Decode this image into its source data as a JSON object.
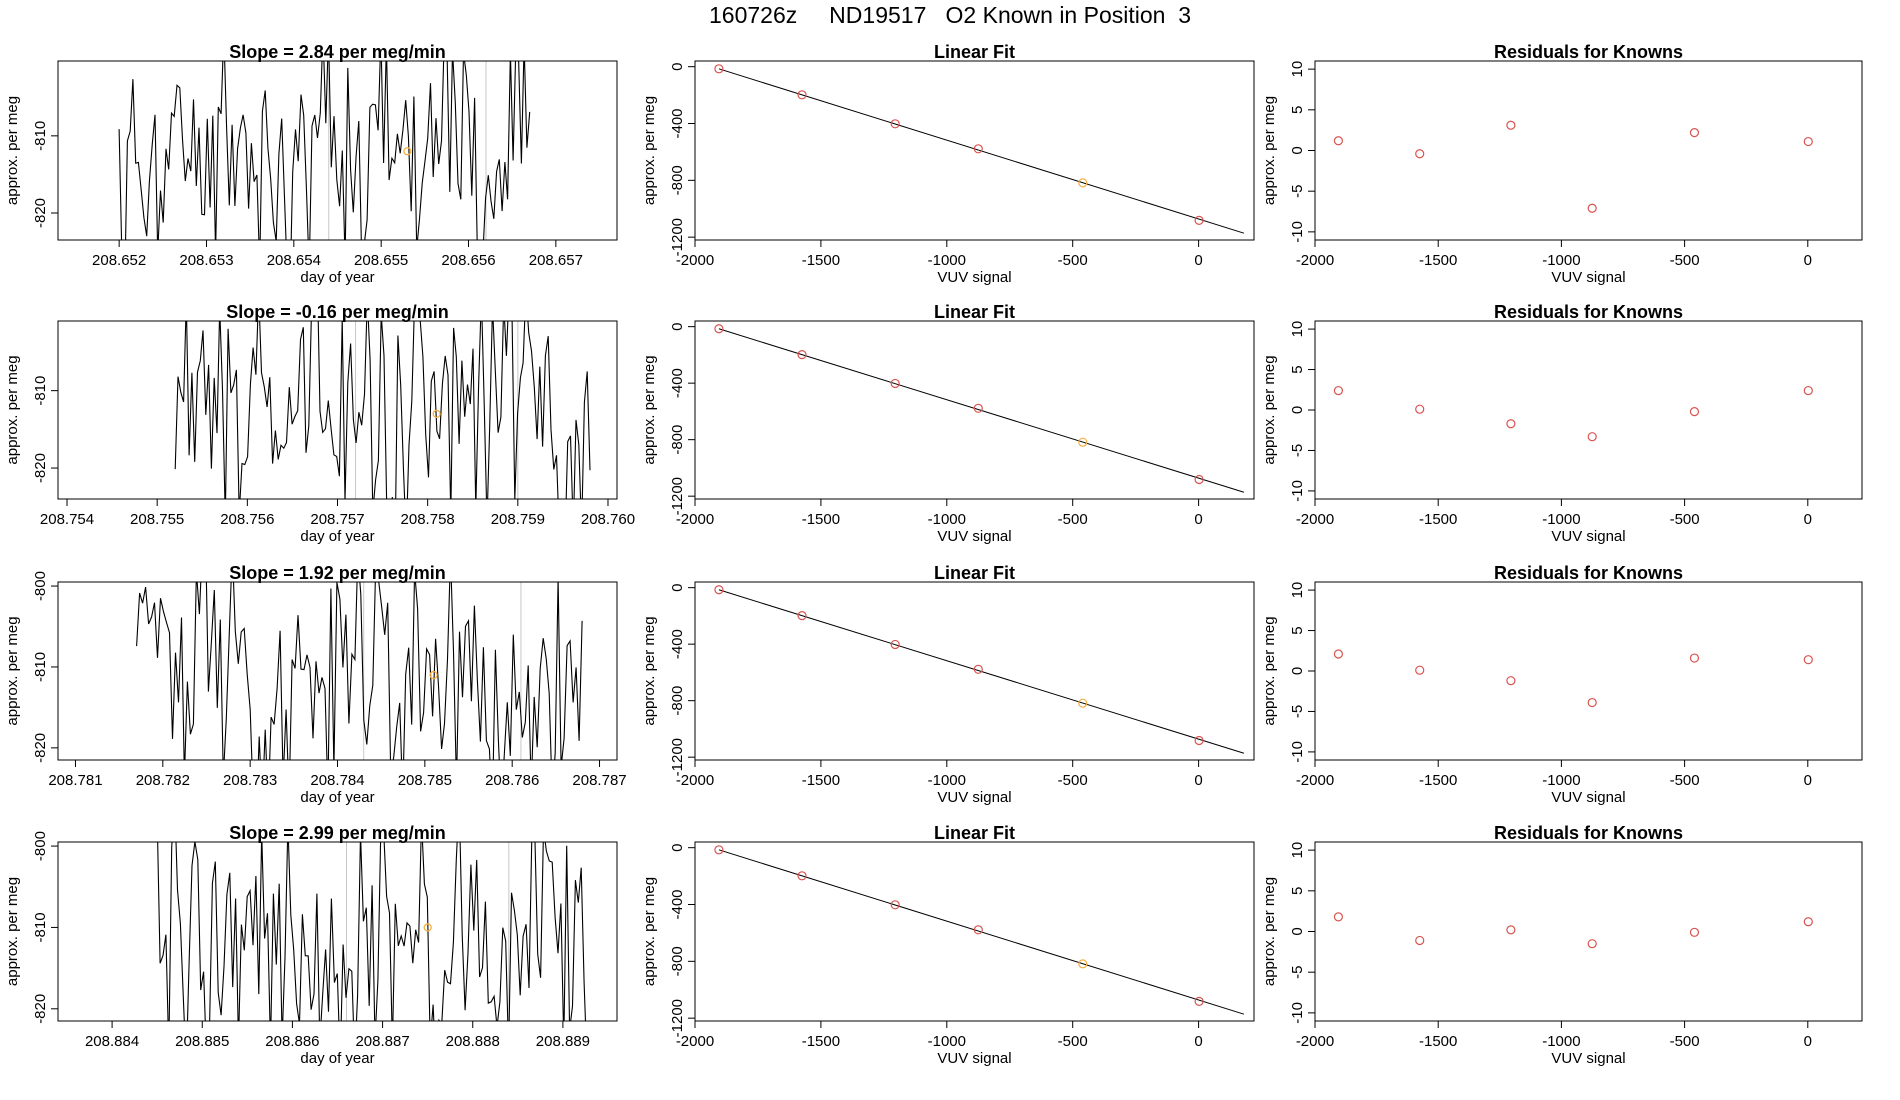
{
  "figure_title": "160726z     ND19517   O2 Known in Position  3",
  "colors": {
    "line": "#000000",
    "known_point": "#f4b041",
    "resid_point": "#d9534f",
    "fit_point_marker": "#d9534f",
    "vline": "#c8c8c8"
  },
  "chart_data": [
    {
      "type": "line",
      "title": "Slope =  2.84  per meg/min",
      "xlabel": "day of year",
      "ylabel": "approx. per meg",
      "xlim": [
        208.6513,
        208.6577
      ],
      "ylim": [
        -823.5,
        -800.3
      ],
      "xticks": [
        208.652,
        208.653,
        208.654,
        208.655,
        208.656,
        208.657
      ],
      "xtick_labels": [
        "208.652",
        "208.653",
        "208.654",
        "208.655",
        "208.656",
        "208.657"
      ],
      "yticks": [
        -810,
        -820
      ],
      "ytick_labels": [
        "-810",
        "-820"
      ],
      "x_start": 208.652,
      "x_end": 208.6567,
      "vlines": [
        208.6544,
        208.6562
      ],
      "marker": {
        "x": 208.6553,
        "y": -812
      },
      "seed": 11,
      "series_mean": -812,
      "series_spread": 8
    },
    {
      "type": "scatter",
      "title": "Linear Fit",
      "xlabel": "VUV signal",
      "ylabel": "approx. per meg",
      "xlim": [
        -2000,
        220
      ],
      "ylim": [
        -1220,
        40
      ],
      "xticks": [
        -2000,
        -1500,
        -1000,
        -500,
        0
      ],
      "xtick_labels": [
        "-2000",
        "-1500",
        "-1000",
        "-500",
        "0"
      ],
      "yticks": [
        0,
        -400,
        -800,
        -1200
      ],
      "ytick_labels": [
        "0",
        "-400",
        "-800",
        "-1200"
      ],
      "x": [
        -1905,
        -1575,
        -1205,
        -875,
        -460,
        2
      ],
      "y": [
        -15,
        -198,
        -402,
        -578,
        -818,
        -1082
      ],
      "highlight_index": 4,
      "fit_line": {
        "x": [
          -1905,
          180
        ],
        "y": [
          -15,
          -1172
        ]
      }
    },
    {
      "type": "scatter",
      "title": "Residuals for Knowns",
      "xlabel": "VUV signal",
      "ylabel": "approx. per meg",
      "xlim": [
        -2000,
        220
      ],
      "ylim": [
        -11,
        11
      ],
      "xticks": [
        -2000,
        -1500,
        -1000,
        -500,
        0
      ],
      "xtick_labels": [
        "-2000",
        "-1500",
        "-1000",
        "-500",
        "0"
      ],
      "yticks": [
        10,
        5,
        0,
        -5,
        -10
      ],
      "ytick_labels": [
        "10",
        "5",
        "0",
        "-5",
        "-10"
      ],
      "x": [
        -1905,
        -1575,
        -1205,
        -875,
        -460,
        2
      ],
      "y": [
        1.2,
        -0.4,
        3.1,
        -7.1,
        2.2,
        1.1
      ]
    },
    {
      "type": "line",
      "title": "Slope =  -0.16  per meg/min",
      "xlabel": "day of year",
      "ylabel": "approx. per meg",
      "xlim": [
        208.7539,
        208.7601
      ],
      "ylim": [
        -824,
        -801
      ],
      "xticks": [
        208.754,
        208.755,
        208.756,
        208.757,
        208.758,
        208.759,
        208.76
      ],
      "xtick_labels": [
        "208.754",
        "208.755",
        "208.756",
        "208.757",
        "208.758",
        "208.759",
        "208.760"
      ],
      "yticks": [
        -810,
        -820
      ],
      "ytick_labels": [
        "-810",
        "-820"
      ],
      "x_start": 208.7552,
      "x_end": 208.7598,
      "vlines": [
        208.7572,
        208.759
      ],
      "marker": {
        "x": 208.7581,
        "y": -813
      },
      "seed": 23,
      "series_mean": -813,
      "series_spread": 8
    },
    {
      "type": "scatter",
      "title": "Linear Fit",
      "xlabel": "VUV signal",
      "ylabel": "approx. per meg",
      "xlim": [
        -2000,
        220
      ],
      "ylim": [
        -1220,
        40
      ],
      "xticks": [
        -2000,
        -1500,
        -1000,
        -500,
        0
      ],
      "xtick_labels": [
        "-2000",
        "-1500",
        "-1000",
        "-500",
        "0"
      ],
      "yticks": [
        0,
        -400,
        -800,
        -1200
      ],
      "ytick_labels": [
        "0",
        "-400",
        "-800",
        "-1200"
      ],
      "x": [
        -1905,
        -1575,
        -1205,
        -875,
        -460,
        2
      ],
      "y": [
        -15,
        -198,
        -402,
        -578,
        -818,
        -1082
      ],
      "highlight_index": 4,
      "fit_line": {
        "x": [
          -1905,
          180
        ],
        "y": [
          -15,
          -1172
        ]
      }
    },
    {
      "type": "scatter",
      "title": "Residuals for Knowns",
      "xlabel": "VUV signal",
      "ylabel": "approx. per meg",
      "xlim": [
        -2000,
        220
      ],
      "ylim": [
        -11,
        11
      ],
      "xticks": [
        -2000,
        -1500,
        -1000,
        -500,
        0
      ],
      "xtick_labels": [
        "-2000",
        "-1500",
        "-1000",
        "-500",
        "0"
      ],
      "yticks": [
        10,
        5,
        0,
        -5,
        -10
      ],
      "ytick_labels": [
        "10",
        "5",
        "0",
        "-5",
        "-10"
      ],
      "x": [
        -1905,
        -1575,
        -1205,
        -875,
        -460,
        2
      ],
      "y": [
        2.4,
        0.1,
        -1.7,
        -3.3,
        -0.2,
        2.4
      ]
    },
    {
      "type": "line",
      "title": "Slope =  1.92  per meg/min",
      "xlabel": "day of year",
      "ylabel": "approx. per meg",
      "xlim": [
        208.7808,
        208.7872
      ],
      "ylim": [
        -821.5,
        -799.5
      ],
      "xticks": [
        208.781,
        208.782,
        208.783,
        208.784,
        208.785,
        208.786,
        208.787
      ],
      "xtick_labels": [
        "208.781",
        "208.782",
        "208.783",
        "208.784",
        "208.785",
        "208.786",
        "208.787"
      ],
      "yticks": [
        -800,
        -810,
        -820
      ],
      "ytick_labels": [
        "-800",
        "-810",
        "-820"
      ],
      "x_start": 208.7817,
      "x_end": 208.7868,
      "vlines": [
        208.7843,
        208.7861
      ],
      "marker": {
        "x": 208.7851,
        "y": -811
      },
      "seed": 37,
      "series_mean": -811,
      "series_spread": 8
    },
    {
      "type": "scatter",
      "title": "Linear Fit",
      "xlabel": "VUV signal",
      "ylabel": "approx. per meg",
      "xlim": [
        -2000,
        220
      ],
      "ylim": [
        -1220,
        40
      ],
      "xticks": [
        -2000,
        -1500,
        -1000,
        -500,
        0
      ],
      "xtick_labels": [
        "-2000",
        "-1500",
        "-1000",
        "-500",
        "0"
      ],
      "yticks": [
        0,
        -400,
        -800,
        -1200
      ],
      "ytick_labels": [
        "0",
        "-400",
        "-800",
        "-1200"
      ],
      "x": [
        -1905,
        -1575,
        -1205,
        -875,
        -460,
        2
      ],
      "y": [
        -15,
        -198,
        -402,
        -578,
        -818,
        -1082
      ],
      "highlight_index": 4,
      "fit_line": {
        "x": [
          -1905,
          180
        ],
        "y": [
          -15,
          -1172
        ]
      }
    },
    {
      "type": "scatter",
      "title": "Residuals for Knowns",
      "xlabel": "VUV signal",
      "ylabel": "approx. per meg",
      "xlim": [
        -2000,
        220
      ],
      "ylim": [
        -11,
        11
      ],
      "xticks": [
        -2000,
        -1500,
        -1000,
        -500,
        0
      ],
      "xtick_labels": [
        "-2000",
        "-1500",
        "-1000",
        "-500",
        "0"
      ],
      "yticks": [
        10,
        5,
        0,
        -5,
        -10
      ],
      "ytick_labels": [
        "10",
        "5",
        "0",
        "-5",
        "-10"
      ],
      "x": [
        -1905,
        -1575,
        -1205,
        -875,
        -460,
        2
      ],
      "y": [
        2.1,
        0.1,
        -1.2,
        -3.9,
        1.6,
        1.4
      ]
    },
    {
      "type": "line",
      "title": "Slope =  2.99  per meg/min",
      "xlabel": "day of year",
      "ylabel": "approx. per meg",
      "xlim": [
        208.8834,
        208.8896
      ],
      "ylim": [
        -821.5,
        -799.5
      ],
      "xticks": [
        208.884,
        208.885,
        208.886,
        208.887,
        208.888,
        208.889
      ],
      "xtick_labels": [
        "208.884",
        "208.885",
        "208.886",
        "208.887",
        "208.888",
        "208.889"
      ],
      "yticks": [
        -800,
        -810,
        -820
      ],
      "ytick_labels": [
        "-800",
        "-810",
        "-820"
      ],
      "x_start": 208.8845,
      "x_end": 208.8893,
      "vlines": [
        208.8866,
        208.8884
      ],
      "marker": {
        "x": 208.8875,
        "y": -810
      },
      "seed": 53,
      "series_mean": -811,
      "series_spread": 8
    },
    {
      "type": "scatter",
      "title": "Linear Fit",
      "xlabel": "VUV signal",
      "ylabel": "approx. per meg",
      "xlim": [
        -2000,
        220
      ],
      "ylim": [
        -1220,
        40
      ],
      "xticks": [
        -2000,
        -1500,
        -1000,
        -500,
        0
      ],
      "xtick_labels": [
        "-2000",
        "-1500",
        "-1000",
        "-500",
        "0"
      ],
      "yticks": [
        0,
        -400,
        -800,
        -1200
      ],
      "ytick_labels": [
        "0",
        "-400",
        "-800",
        "-1200"
      ],
      "x": [
        -1905,
        -1575,
        -1205,
        -875,
        -460,
        2
      ],
      "y": [
        -15,
        -198,
        -402,
        -578,
        -818,
        -1082
      ],
      "highlight_index": 4,
      "fit_line": {
        "x": [
          -1905,
          180
        ],
        "y": [
          -15,
          -1172
        ]
      }
    },
    {
      "type": "scatter",
      "title": "Residuals for Knowns",
      "xlabel": "VUV signal",
      "ylabel": "approx. per meg",
      "xlim": [
        -2000,
        220
      ],
      "ylim": [
        -11,
        11
      ],
      "xticks": [
        -2000,
        -1500,
        -1000,
        -500,
        0
      ],
      "xtick_labels": [
        "-2000",
        "-1500",
        "-1000",
        "-500",
        "0"
      ],
      "yticks": [
        10,
        5,
        0,
        -5,
        -10
      ],
      "ytick_labels": [
        "10",
        "5",
        "0",
        "-5",
        "-10"
      ],
      "x": [
        -1905,
        -1575,
        -1205,
        -875,
        -460,
        2
      ],
      "y": [
        1.8,
        -1.1,
        0.2,
        -1.5,
        -0.1,
        1.2
      ]
    }
  ]
}
